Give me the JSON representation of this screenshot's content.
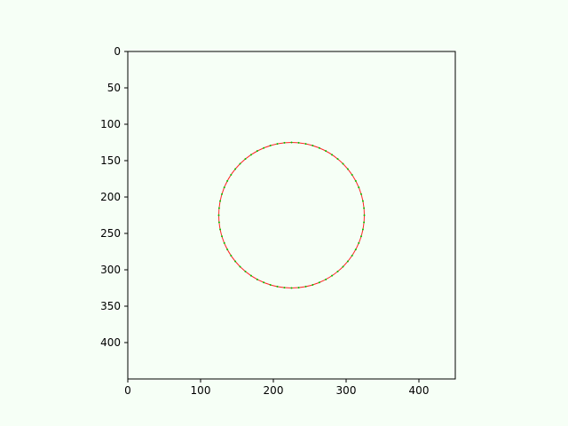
{
  "chart_data": {
    "type": "scatter",
    "title": "",
    "xlabel": "",
    "ylabel": "",
    "xlim": [
      0,
      450
    ],
    "ylim": [
      450,
      0
    ],
    "y_inverted": true,
    "grid": false,
    "background": "#f6fff6",
    "xticks": [
      0,
      100,
      200,
      300,
      400
    ],
    "yticks": [
      0,
      50,
      100,
      150,
      200,
      250,
      300,
      350,
      400
    ],
    "series": [
      {
        "mark": "line",
        "color": "#ff0000",
        "shape": "circle",
        "center": [
          225,
          225
        ],
        "radius": 100
      },
      {
        "mark": "dots",
        "color": "#00c800",
        "shape": "circle",
        "center": [
          225,
          225
        ],
        "radius": 100,
        "point_count": 64
      }
    ]
  }
}
